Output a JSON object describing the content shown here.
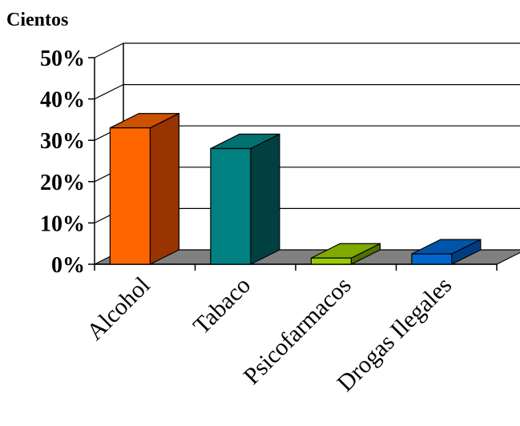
{
  "chart_data": {
    "type": "bar",
    "title": "",
    "unit_label": "Cientos",
    "xlabel": "",
    "ylabel": "",
    "ylim": [
      0,
      50
    ],
    "y_ticks": [
      "0%",
      "10%",
      "20%",
      "30%",
      "40%",
      "50%"
    ],
    "y_tick_values": [
      0,
      10,
      20,
      30,
      40,
      50
    ],
    "categories": [
      "Alcohol",
      "Tabaco",
      "Psicofarmacos",
      "Drogas Ilegales"
    ],
    "values": [
      33,
      28,
      1.5,
      2.5
    ],
    "grid": true,
    "style": "3d-column",
    "colors": {
      "bars_front": [
        "#ff6600",
        "#008080",
        "#99cc00",
        "#0066cc"
      ],
      "bars_side": [
        "#993300",
        "#004040",
        "#507000",
        "#003d80"
      ],
      "bars_top": [
        "#cc5200",
        "#007070",
        "#80aa00",
        "#0055aa"
      ],
      "floor": "#808080"
    }
  }
}
